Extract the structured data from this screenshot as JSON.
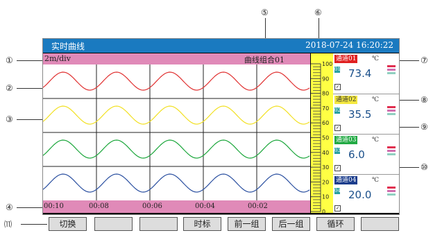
{
  "header": {
    "title": "实时曲线",
    "datetime": "2018-07-24   16:20:22"
  },
  "info": {
    "interval": "2m/div",
    "group": "曲线组合01"
  },
  "time_axis": [
    "00:10",
    "00:08",
    "00:06",
    "00:04",
    "00:02"
  ],
  "scale_ticks": [
    "100",
    "90",
    "80",
    "70",
    "60",
    "50",
    "40",
    "30",
    "20",
    "10",
    "0"
  ],
  "channels": [
    {
      "name": "通道01",
      "unit": "℃",
      "index": "01",
      "value": "73.4",
      "tag_color": "#e02020",
      "text_color": "#fff",
      "curve_color": "#e03030"
    },
    {
      "name": "通道02",
      "unit": "℃",
      "index": "02",
      "value": "35.5",
      "tag_color": "#f4e840",
      "text_color": "#333",
      "curve_color": "#f2e022"
    },
    {
      "name": "通道03",
      "unit": "℃",
      "index": "03",
      "value": "6.0",
      "tag_color": "#22aa44",
      "text_color": "#fff",
      "curve_color": "#1aa63a"
    },
    {
      "name": "通道04",
      "unit": "℃",
      "index": "04",
      "value": "20.0",
      "tag_color": "#1b3d8c",
      "text_color": "#fff",
      "curve_color": "#2a4fa0"
    }
  ],
  "buttons": [
    "切换",
    "",
    "",
    "时标",
    "前一组",
    "后一组",
    "循环",
    ""
  ],
  "callouts": [
    "①",
    "②",
    "③",
    "④",
    "⑤",
    "⑥",
    "⑦",
    "⑧",
    "⑨",
    "⑩",
    "⑾"
  ],
  "check_mark": "✓"
}
